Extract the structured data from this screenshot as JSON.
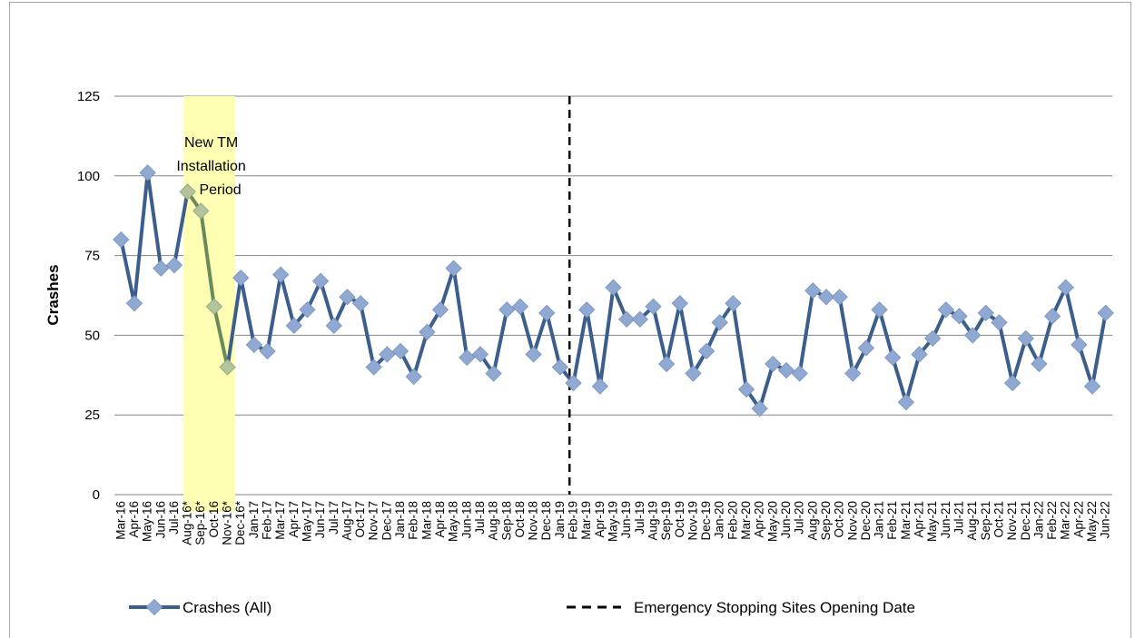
{
  "chart_data": {
    "type": "line",
    "title": "",
    "xlabel": "",
    "ylabel": "Crashes",
    "ylim": [
      0,
      125
    ],
    "yticks": [
      0,
      25,
      50,
      75,
      100,
      125
    ],
    "grid": "horizontal",
    "legend_position": "bottom",
    "categories": [
      "Mar-16",
      "Apr-16",
      "May-16",
      "Jun-16",
      "Jul-16",
      "Aug-16*",
      "Sep-16*",
      "Oct-16",
      "Nov-16*",
      "Dec-16*",
      "Jan-17",
      "Feb-17",
      "Mar-17",
      "Apr-17",
      "May-17",
      "Jun-17",
      "Jul-17",
      "Aug-17",
      "Oct-17",
      "Nov-17",
      "Dec-17",
      "Jan-18",
      "Feb-18",
      "Mar-18",
      "Apr-18",
      "May-18",
      "Jun-18",
      "Jul-18",
      "Aug-18",
      "Sep-18",
      "Oct-18",
      "Nov-18",
      "Dec-18",
      "Jan-19",
      "Feb-19",
      "Mar-19",
      "Apr-19",
      "May-19",
      "Jun-19",
      "Jul-19",
      "Aug-19",
      "Sep-19",
      "Oct-19",
      "Nov-19",
      "Dec-19",
      "Jan-20",
      "Feb-20",
      "Mar-20",
      "Apr-20",
      "May-20",
      "Jun-20",
      "Jul-20",
      "Aug-20",
      "Sep-20",
      "Oct-20",
      "Nov-20",
      "Dec-20",
      "Jan-21",
      "Feb-21",
      "Mar-21",
      "Apr-21",
      "May-21",
      "Jun-21",
      "Jul-21",
      "Aug-21",
      "Sep-21",
      "Oct-21",
      "Nov-21",
      "Dec-21",
      "Jan-22",
      "Feb-22",
      "Mar-22",
      "Apr-22",
      "May-22",
      "Jun-22"
    ],
    "series": [
      {
        "name": "Crashes (All)",
        "color": "#3b5e8c",
        "marker_color": "#8fa9d2",
        "values": [
          80,
          60,
          101,
          71,
          72,
          95,
          89,
          59,
          40,
          68,
          47,
          45,
          69,
          53,
          58,
          67,
          53,
          62,
          60,
          40,
          44,
          45,
          37,
          51,
          58,
          71,
          43,
          44,
          38,
          58,
          59,
          44,
          57,
          40,
          35,
          58,
          34,
          65,
          55,
          55,
          59,
          41,
          60,
          38,
          45,
          54,
          60,
          33,
          27,
          41,
          39,
          38,
          64,
          62,
          62,
          38,
          46,
          58,
          43,
          29,
          44,
          49,
          58,
          56,
          50,
          57,
          54,
          35,
          49,
          41,
          56,
          65,
          47,
          34,
          57
        ]
      }
    ],
    "highlighted_range": {
      "start_index": 5,
      "end_index": 8,
      "color": "#ffffb3",
      "line_color": "#6b8a5a"
    },
    "annotations": {
      "installation_period": [
        "New TM",
        "Installation",
        "Period"
      ]
    },
    "vertical_marker": {
      "after_index": 33,
      "label": "Emergency Stopping Sites Opening Date",
      "style": "dashed",
      "color": "#000000"
    }
  }
}
